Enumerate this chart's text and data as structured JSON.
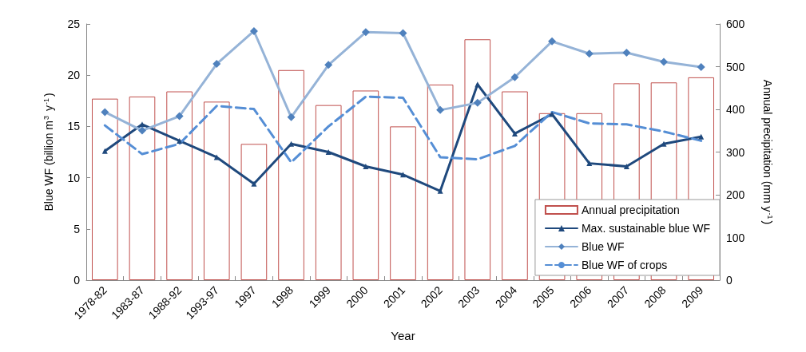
{
  "chart_data": {
    "type": "bar",
    "xlabel": "Year",
    "ylabel": "Blue WF (billion m$^{3}$ y$^{-1}$)",
    "y2label": "Annual precipitation (mm y$^{-1}$)",
    "categories": [
      "1978-82",
      "1983-87",
      "1988-92",
      "1993-97",
      "1997",
      "1998",
      "1999",
      "2000",
      "2001",
      "2002",
      "2003",
      "2004",
      "2005",
      "2006",
      "2007",
      "2008",
      "2009"
    ],
    "series": [
      {
        "name": "Annual precipitation",
        "axis": "y2",
        "color": "#c0504d",
        "values": [
          425,
          430,
          442,
          418,
          319,
          492,
          410,
          444,
          360,
          458,
          564,
          442,
          391,
          391,
          461,
          463,
          475
        ]
      },
      {
        "name": "Max. sustainable blue WF",
        "type": "line",
        "color": "#1f497d",
        "marker": "triangle",
        "line_style": "solid",
        "values": [
          12.6,
          15.2,
          13.6,
          12.0,
          9.4,
          13.3,
          12.5,
          11.1,
          10.3,
          8.7,
          19.1,
          14.3,
          16.2,
          11.4,
          11.1,
          13.3,
          14.0
        ]
      },
      {
        "name": "Blue WF",
        "type": "line",
        "color": "#95b3d7",
        "marker": "diamond",
        "line_style": "solid",
        "values": [
          16.4,
          14.6,
          16.0,
          21.1,
          24.3,
          15.9,
          21.0,
          24.2,
          24.1,
          16.6,
          17.3,
          19.8,
          23.3,
          22.1,
          22.2,
          21.3,
          20.8
        ]
      },
      {
        "name": "Blue WF of crops",
        "type": "line",
        "color": "#558ed5",
        "marker": "none",
        "line_style": "dashed",
        "values": [
          15.1,
          12.3,
          13.3,
          17.0,
          16.7,
          11.5,
          15.0,
          17.9,
          17.8,
          12.0,
          11.8,
          13.1,
          16.4,
          15.3,
          15.2,
          14.5,
          13.6
        ]
      }
    ],
    "ylim": [
      0,
      25
    ],
    "yticks": [
      0,
      5,
      10,
      15,
      20,
      25
    ],
    "y2lim": [
      0,
      600
    ],
    "y2ticks": [
      0,
      100,
      200,
      300,
      400,
      500,
      600
    ],
    "grid": false,
    "legend": "bottom right"
  }
}
